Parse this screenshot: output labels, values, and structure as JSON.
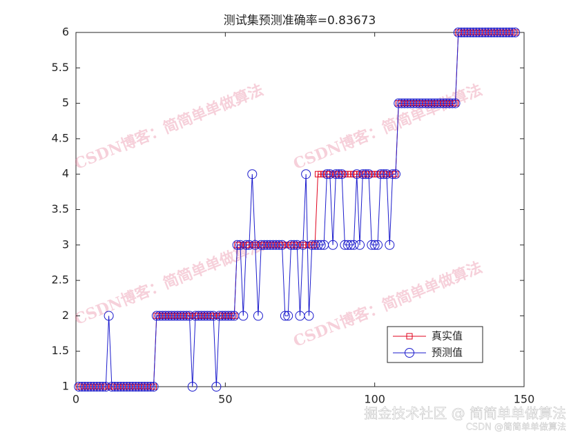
{
  "chart_data": {
    "type": "line",
    "title": "测试集预测准确率=0.83673",
    "x": [
      1,
      2,
      3,
      4,
      5,
      6,
      7,
      8,
      9,
      10,
      11,
      12,
      13,
      14,
      15,
      16,
      17,
      18,
      19,
      20,
      21,
      22,
      23,
      24,
      25,
      26,
      27,
      28,
      29,
      30,
      31,
      32,
      33,
      34,
      35,
      36,
      37,
      38,
      39,
      40,
      41,
      42,
      43,
      44,
      45,
      46,
      47,
      48,
      49,
      50,
      51,
      52,
      53,
      54,
      55,
      56,
      57,
      58,
      59,
      60,
      61,
      62,
      63,
      64,
      65,
      66,
      67,
      68,
      69,
      70,
      71,
      72,
      73,
      74,
      75,
      76,
      77,
      78,
      79,
      80,
      81,
      82,
      83,
      84,
      85,
      86,
      87,
      88,
      89,
      90,
      91,
      92,
      93,
      94,
      95,
      96,
      97,
      98,
      99,
      100,
      101,
      102,
      103,
      104,
      105,
      106,
      107,
      108,
      109,
      110,
      111,
      112,
      113,
      114,
      115,
      116,
      117,
      118,
      119,
      120,
      121,
      122,
      123,
      124,
      125,
      126,
      127,
      128,
      129,
      130,
      131,
      132,
      133,
      134,
      135,
      136,
      137,
      138,
      139,
      140,
      141,
      142,
      143,
      144,
      145,
      146,
      147
    ],
    "series": [
      {
        "name": "真实值",
        "color": "#e0001b",
        "marker": "square",
        "values": [
          1,
          1,
          1,
          1,
          1,
          1,
          1,
          1,
          1,
          1,
          1,
          1,
          1,
          1,
          1,
          1,
          1,
          1,
          1,
          1,
          1,
          1,
          1,
          1,
          1,
          1,
          2,
          2,
          2,
          2,
          2,
          2,
          2,
          2,
          2,
          2,
          2,
          2,
          2,
          2,
          2,
          2,
          2,
          2,
          2,
          2,
          2,
          2,
          2,
          2,
          2,
          2,
          2,
          3,
          3,
          3,
          3,
          3,
          3,
          3,
          3,
          3,
          3,
          3,
          3,
          3,
          3,
          3,
          3,
          3,
          3,
          3,
          3,
          3,
          3,
          3,
          3,
          3,
          3,
          3,
          4,
          4,
          4,
          4,
          4,
          4,
          4,
          4,
          4,
          4,
          4,
          4,
          4,
          4,
          4,
          4,
          4,
          4,
          4,
          4,
          4,
          4,
          4,
          4,
          4,
          4,
          4,
          5,
          5,
          5,
          5,
          5,
          5,
          5,
          5,
          5,
          5,
          5,
          5,
          5,
          5,
          5,
          5,
          5,
          5,
          5,
          5,
          6,
          6,
          6,
          6,
          6,
          6,
          6,
          6,
          6,
          6,
          6,
          6,
          6,
          6,
          6,
          6,
          6,
          6,
          6,
          6
        ]
      },
      {
        "name": "预测值",
        "color": "#1a1acc",
        "marker": "circle",
        "values": [
          1,
          1,
          1,
          1,
          1,
          1,
          1,
          1,
          1,
          1,
          2,
          1,
          1,
          1,
          1,
          1,
          1,
          1,
          1,
          1,
          1,
          1,
          1,
          1,
          1,
          1,
          2,
          2,
          2,
          2,
          2,
          2,
          2,
          2,
          2,
          2,
          2,
          2,
          1,
          2,
          2,
          2,
          2,
          2,
          2,
          2,
          1,
          2,
          2,
          2,
          2,
          2,
          2,
          3,
          3,
          2,
          3,
          3,
          4,
          3,
          2,
          3,
          3,
          3,
          3,
          3,
          3,
          3,
          3,
          2,
          2,
          3,
          3,
          3,
          2,
          3,
          4,
          2,
          3,
          3,
          3,
          3,
          3,
          4,
          4,
          3,
          4,
          4,
          4,
          3,
          3,
          3,
          3,
          4,
          3,
          4,
          4,
          4,
          3,
          3,
          3,
          4,
          4,
          4,
          3,
          4,
          4,
          5,
          5,
          5,
          5,
          5,
          5,
          5,
          5,
          5,
          5,
          5,
          5,
          5,
          5,
          5,
          5,
          5,
          5,
          5,
          5,
          6,
          6,
          6,
          6,
          6,
          6,
          6,
          6,
          6,
          6,
          6,
          6,
          6,
          6,
          6,
          6,
          6,
          6,
          6,
          6
        ]
      }
    ],
    "xlim": [
      0,
      150
    ],
    "xticks": [
      0,
      50,
      100,
      150
    ],
    "ylim": [
      1,
      6
    ],
    "yticks": [
      1,
      1.5,
      2,
      2.5,
      3,
      3.5,
      4,
      4.5,
      5,
      5.5,
      6
    ],
    "grid": false,
    "legend": "lower-right"
  },
  "watermark": "CSDN博客：简简单单做算法",
  "footer": {
    "main": "掘金技术社区 @ 简简单单做算法",
    "sub": "CSDN @简简单单做算法"
  }
}
